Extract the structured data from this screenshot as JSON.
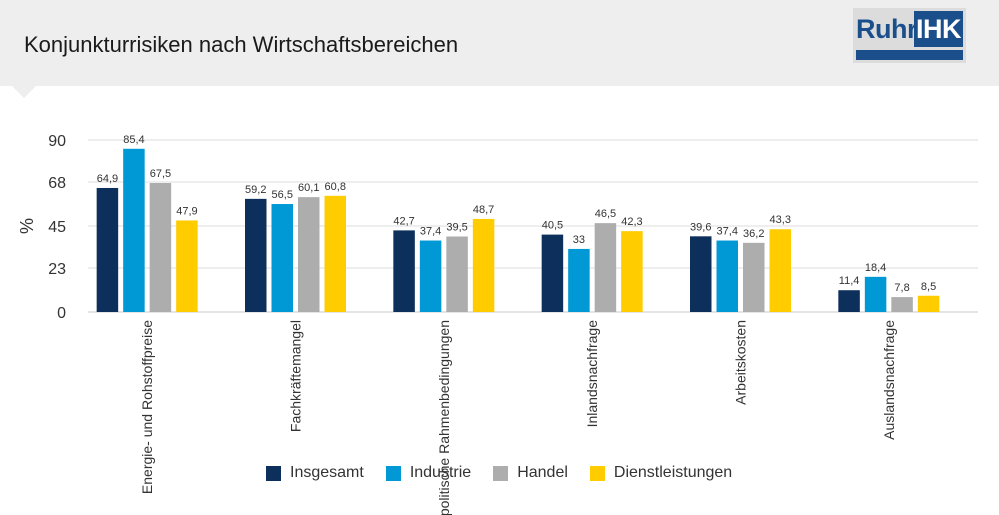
{
  "header": {
    "title": "Konjunkturrisiken nach Wirtschaftsbereichen",
    "logo": {
      "left_text": "Ruhr",
      "right_text": "IHK",
      "color": "#1a4f8b"
    }
  },
  "chart_data": {
    "type": "bar",
    "title": "Konjunkturrisiken nach Wirtschaftsbereichen",
    "ylabel": "%",
    "xlabel": "",
    "ylim": [
      0,
      90
    ],
    "yticks": [
      0,
      23,
      45,
      68,
      90
    ],
    "grid": true,
    "legend_position": "bottom",
    "categories": [
      "Energie- und Rohstoffpreise",
      "Fachkräftemangel",
      "politische Rahmenbedingungen",
      "Inlandsnachfrage",
      "Arbeitskosten",
      "Auslandsnachfrage"
    ],
    "series": [
      {
        "name": "Insgesamt",
        "color": "#0d2f5c",
        "values": [
          64.9,
          59.2,
          42.7,
          40.5,
          39.6,
          11.4
        ],
        "labels": [
          "64,9",
          "59,2",
          "42,7",
          "40,5",
          "39,6",
          "11,4"
        ]
      },
      {
        "name": "Industrie",
        "color": "#0099d6",
        "values": [
          85.4,
          56.5,
          37.4,
          33,
          37.4,
          18.4
        ],
        "labels": [
          "85,4",
          "56,5",
          "37,4",
          "33",
          "37,4",
          "18,4"
        ]
      },
      {
        "name": "Handel",
        "color": "#adadad",
        "values": [
          67.5,
          60.1,
          39.5,
          46.5,
          36.2,
          7.8
        ],
        "labels": [
          "67,5",
          "60,1",
          "39,5",
          "46,5",
          "36,2",
          "7,8"
        ]
      },
      {
        "name": "Dienstleistungen",
        "color": "#ffcc00",
        "values": [
          47.9,
          60.8,
          48.7,
          42.3,
          43.3,
          8.5
        ],
        "labels": [
          "47,9",
          "60,8",
          "48,7",
          "42,3",
          "43,3",
          "8,5"
        ]
      }
    ]
  }
}
